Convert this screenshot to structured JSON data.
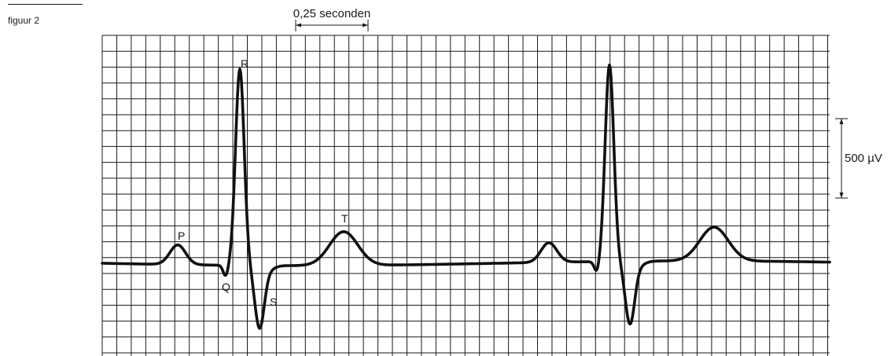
{
  "figure_label": "figuur 2",
  "time_scale": {
    "label": "0,25 seconden"
  },
  "voltage_scale": {
    "label": "500 µV"
  },
  "waves": {
    "P": "P",
    "Q": "Q",
    "R": "R",
    "S": "S",
    "T": "T"
  },
  "colors": {
    "grid": "#1a1a1a",
    "trace": "#111111",
    "background": "#ffffff"
  }
}
